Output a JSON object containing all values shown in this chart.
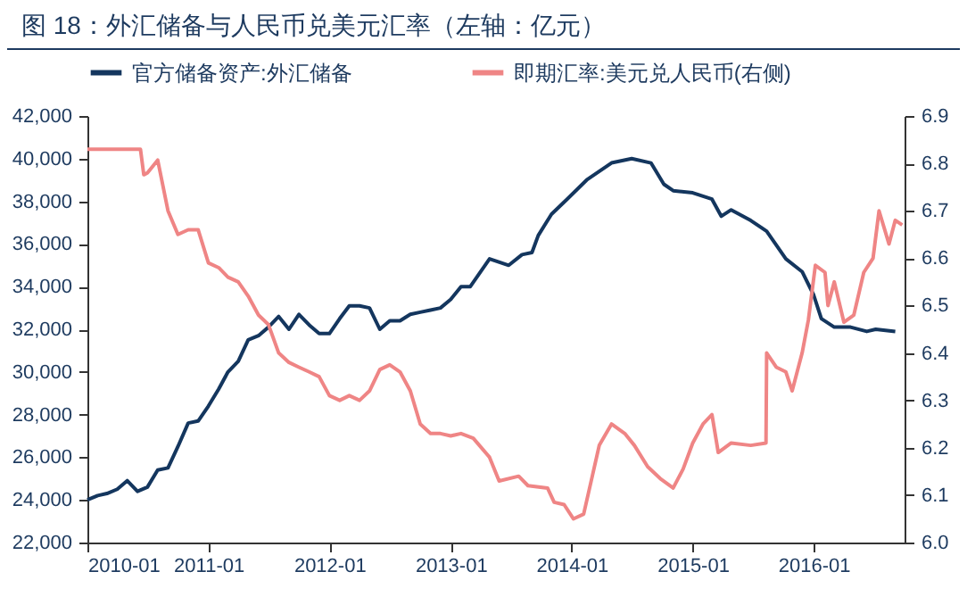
{
  "chart_data": {
    "type": "line",
    "title": "图 18：外汇储备与人民币兑美元汇率（左轴：亿元）",
    "xlim": [
      "2010-01",
      "2016-10"
    ],
    "xticks": [
      {
        "value": "2010-01",
        "label": "2010-01"
      },
      {
        "value": "2011-01",
        "label": "2011-01"
      },
      {
        "value": "2012-01",
        "label": "2012-01"
      },
      {
        "value": "2013-01",
        "label": "2013-01"
      },
      {
        "value": "2014-01",
        "label": "2014-01"
      },
      {
        "value": "2015-01",
        "label": "2015-01"
      },
      {
        "value": "2016-01",
        "label": "2016-01"
      }
    ],
    "ylim": [
      22000,
      42000
    ],
    "yticks": [
      {
        "value": 22000,
        "label": "22,000"
      },
      {
        "value": 24000,
        "label": "24,000"
      },
      {
        "value": 26000,
        "label": "26,000"
      },
      {
        "value": 28000,
        "label": "28,000"
      },
      {
        "value": 30000,
        "label": "30,000"
      },
      {
        "value": 32000,
        "label": "32,000"
      },
      {
        "value": 34000,
        "label": "34,000"
      },
      {
        "value": 36000,
        "label": "36,000"
      },
      {
        "value": 38000,
        "label": "38,000"
      },
      {
        "value": 40000,
        "label": "40,000"
      },
      {
        "value": 42000,
        "label": "42,000"
      }
    ],
    "y2lim": [
      6.0,
      6.9
    ],
    "y2ticks": [
      {
        "value": 6.0,
        "label": "6.0"
      },
      {
        "value": 6.1,
        "label": "6.1"
      },
      {
        "value": 6.2,
        "label": "6.2"
      },
      {
        "value": 6.3,
        "label": "6.3"
      },
      {
        "value": 6.4,
        "label": "6.4"
      },
      {
        "value": 6.5,
        "label": "6.5"
      },
      {
        "value": 6.6,
        "label": "6.6"
      },
      {
        "value": 6.7,
        "label": "6.7"
      },
      {
        "value": 6.8,
        "label": "6.8"
      },
      {
        "value": 6.9,
        "label": "6.9"
      }
    ],
    "legend": "top",
    "grid": false,
    "series": [
      {
        "name": "官方储备资产:外汇储备",
        "color": "#14365e",
        "x": [
          "2010-01",
          "2010-02",
          "2010-03",
          "2010-04",
          "2010-05",
          "2010-06",
          "2010-07",
          "2010-08",
          "2010-09",
          "2010-10",
          "2010-11",
          "2010-12",
          "2011-01",
          "2011-02",
          "2011-03",
          "2011-04",
          "2011-05",
          "2011-06",
          "2011-07",
          "2011-08",
          "2011-09",
          "2011-10",
          "2011-11",
          "2011-12",
          "2012-01",
          "2012-02",
          "2012-03",
          "2012-04",
          "2012-05",
          "2012-06",
          "2012-07",
          "2012-08",
          "2012-09",
          "2012-10",
          "2012-11",
          "2012-12",
          "2013-01",
          "2013-02",
          "2013-03",
          "2013-04-28",
          "2013-06-25",
          "2013-08-04",
          "2013-09-03",
          "2013-09-22",
          "2013-11-01",
          "2013-12-18",
          "2014-02-15",
          "2014-05-01",
          "2014-07-01",
          "2014-08-28",
          "2014-10-06",
          "2014-11-03",
          "2015-01-01",
          "2015-02-28",
          "2015-03-28",
          "2015-04-27",
          "2015-06-25",
          "2015-08-12",
          "2015-10-09",
          "2015-11-27",
          "2016-01-01",
          "2016-01-24",
          "2016-03-03",
          "2016-04-21",
          "2016-06-09",
          "2016-07-06",
          "2016-09-03"
        ],
        "values": [
          24000,
          24200,
          24300,
          24500,
          24900,
          24400,
          24600,
          25400,
          25500,
          26500,
          27600,
          27700,
          28400,
          29200,
          30000,
          30500,
          31500,
          31700,
          32100,
          32600,
          32000,
          32700,
          32200,
          31800,
          31800,
          32500,
          33100,
          33100,
          33000,
          32000,
          32400,
          32400,
          32700,
          32800,
          32900,
          33000,
          33400,
          34000,
          34000,
          35300,
          35000,
          35500,
          35600,
          36400,
          37400,
          38100,
          39000,
          39800,
          40000,
          39800,
          38800,
          38500,
          38400,
          38100,
          37300,
          37600,
          37100,
          36600,
          35300,
          34700,
          33600,
          32500,
          32100,
          32100,
          31900,
          32000,
          31900
        ]
      },
      {
        "name": "即期汇率:美元兑人民币(右侧)",
        "color": "#ef8585",
        "axis": "y2",
        "x": [
          "2010-01",
          "2010-03",
          "2010-06-10",
          "2010-06-20",
          "2010-07",
          "2010-08",
          "2010-09",
          "2010-10",
          "2010-11",
          "2010-12",
          "2011-01",
          "2011-02",
          "2011-03",
          "2011-04",
          "2011-05",
          "2011-06",
          "2011-07",
          "2011-08",
          "2011-09",
          "2011-10",
          "2011-11",
          "2011-12",
          "2012-01",
          "2012-02",
          "2012-03",
          "2012-04",
          "2012-05",
          "2012-06",
          "2012-07",
          "2012-08",
          "2012-09",
          "2012-10",
          "2012-11",
          "2012-12",
          "2013-01",
          "2013-02",
          "2013-03-10",
          "2013-04-28",
          "2013-05-27",
          "2013-07-25",
          "2013-08-22",
          "2013-10-20",
          "2013-11-09",
          "2013-12-09",
          "2014-01-06",
          "2014-02-06",
          "2014-03-04",
          "2014-03-25",
          "2014-05-01",
          "2014-06-10",
          "2014-07-09",
          "2014-08-18",
          "2014-09-25",
          "2014-11-03",
          "2014-12-03",
          "2015-01-01",
          "2015-02-01",
          "2015-02-28",
          "2015-03-19",
          "2015-04-27",
          "2015-06-25",
          "2015-08-10",
          "2015-08-12",
          "2015-09-10",
          "2015-10-09",
          "2015-10-28",
          "2015-11-27",
          "2015-12-16",
          "2016-01-06",
          "2016-02-04",
          "2016-02-13",
          "2016-03-03",
          "2016-04-01",
          "2016-05-01",
          "2016-05-31",
          "2016-06-28",
          "2016-07-16",
          "2016-08-15",
          "2016-09-03",
          "2016-09-24"
        ],
        "values": [
          6.83,
          6.83,
          6.83,
          6.776,
          6.78,
          6.807,
          6.7,
          6.65,
          6.66,
          6.66,
          6.59,
          6.58,
          6.56,
          6.55,
          6.52,
          6.48,
          6.46,
          6.4,
          6.38,
          6.37,
          6.36,
          6.35,
          6.31,
          6.3,
          6.31,
          6.3,
          6.32,
          6.365,
          6.375,
          6.36,
          6.32,
          6.25,
          6.23,
          6.23,
          6.225,
          6.23,
          6.22,
          6.18,
          6.13,
          6.14,
          6.12,
          6.115,
          6.085,
          6.08,
          6.05,
          6.06,
          6.14,
          6.205,
          6.25,
          6.23,
          6.205,
          6.16,
          6.135,
          6.115,
          6.155,
          6.21,
          6.25,
          6.27,
          6.19,
          6.21,
          6.205,
          6.21,
          6.4,
          6.37,
          6.36,
          6.32,
          6.4,
          6.47,
          6.585,
          6.57,
          6.5,
          6.55,
          6.465,
          6.48,
          6.57,
          6.6,
          6.7,
          6.63,
          6.68,
          6.67
        ]
      }
    ]
  }
}
